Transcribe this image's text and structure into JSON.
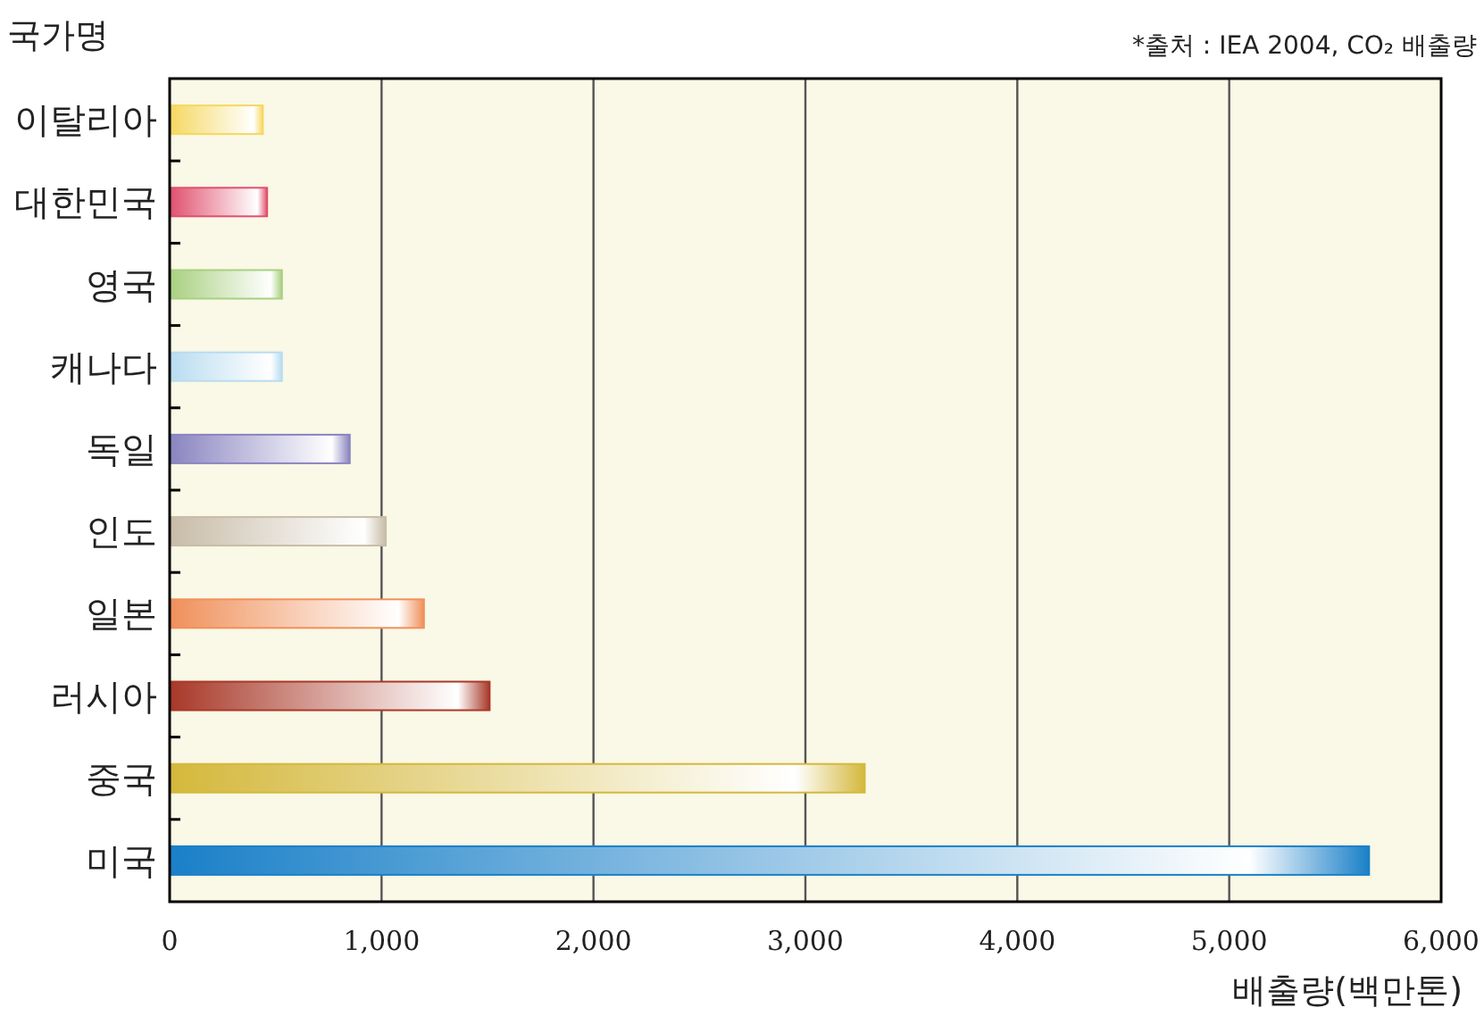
{
  "chart_data": {
    "type": "bar",
    "orientation": "horizontal",
    "ylabel": "국가명",
    "xlabel": "배출량(백만톤)",
    "annotations": [
      "*출처 : IEA 2004, CO₂ 배출량"
    ],
    "categories": [
      "이탈리아",
      "대한민국",
      "영국",
      "캐나다",
      "독일",
      "인도",
      "일본",
      "러시아",
      "중국",
      "미국"
    ],
    "values": [
      440,
      460,
      530,
      530,
      850,
      1020,
      1200,
      1510,
      3280,
      5660
    ],
    "colors": [
      "#f5d860",
      "#e0506e",
      "#a8d080",
      "#b8dcf0",
      "#8a84c0",
      "#c8bca8",
      "#f0905a",
      "#a83828",
      "#d4b83c",
      "#1a80c8"
    ],
    "xlim": [
      0,
      6000
    ],
    "xticks": [
      {
        "value": 0,
        "label": "0"
      },
      {
        "value": 1000,
        "label": "1,000"
      },
      {
        "value": 2000,
        "label": "2,000"
      },
      {
        "value": 3000,
        "label": "3,000"
      },
      {
        "value": 4000,
        "label": "4,000"
      },
      {
        "value": 5000,
        "label": "5,000"
      },
      {
        "value": 6000,
        "label": "6,000"
      }
    ],
    "grid": "x"
  }
}
